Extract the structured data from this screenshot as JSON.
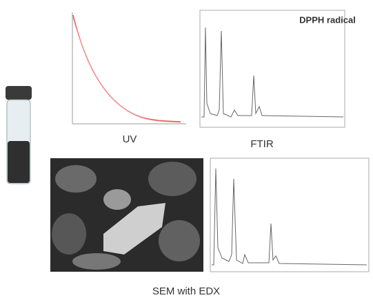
{
  "panels": {
    "dpph": "DPPH radical",
    "uv": "UV",
    "ftir": "FTIR",
    "sem": "SEM with EDX"
  }
}
